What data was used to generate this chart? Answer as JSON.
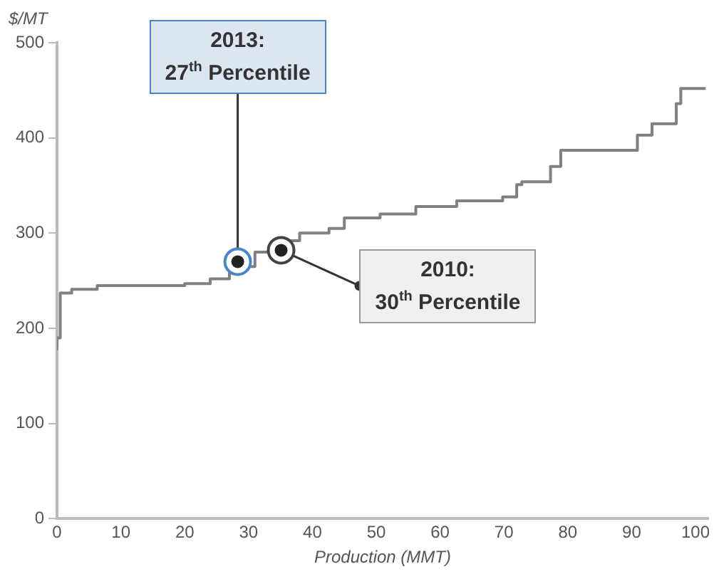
{
  "chart_data": {
    "type": "step",
    "xlabel": "Production (MMT)",
    "ylabel": "$/MT",
    "x": [
      0,
      0.5,
      2.3,
      6.3,
      11.6,
      20,
      24,
      27,
      28.5,
      31,
      35,
      38,
      42.6,
      45,
      50.6,
      56.2,
      62.6,
      69.8,
      72,
      72.8,
      77.3,
      78.9,
      84.1,
      90.9,
      93.2,
      97,
      97.7,
      101.6
    ],
    "series": [
      {
        "color": "#808080",
        "values": [
          177,
          190,
          237,
          241,
          245,
          245,
          247,
          252,
          258,
          265,
          280,
          292,
          300,
          305,
          316,
          320,
          328,
          334,
          338,
          351,
          354,
          370,
          387,
          387,
          403,
          415,
          436,
          452
        ]
      }
    ],
    "xlim": [
      0,
      102
    ],
    "ylim": [
      0,
      500
    ],
    "xticks": [
      0,
      10,
      20,
      30,
      40,
      50,
      60,
      70,
      80,
      90,
      100
    ],
    "yticks": [
      0,
      100,
      200,
      300,
      400,
      500
    ],
    "annotations": [
      {
        "text": "2013:\n27$^{th}$ Percentile",
        "x": 28.3,
        "y": 270
      },
      {
        "text": "2010:\n30$^{th}$ Percentile",
        "x": 35.1,
        "y": 282
      }
    ],
    "grid": false,
    "legend": false
  }
}
